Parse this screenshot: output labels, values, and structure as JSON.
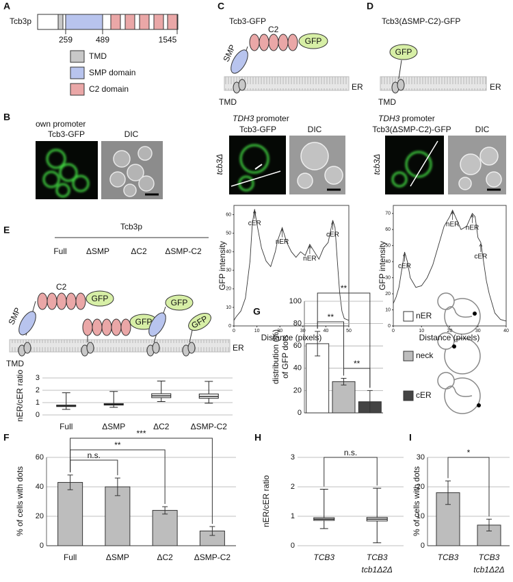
{
  "panels": [
    "A",
    "B",
    "C",
    "D",
    "E",
    "F",
    "G",
    "H",
    "I"
  ],
  "domain_map": {
    "protein": "Tcb3p",
    "positions": [
      259,
      489,
      1545
    ],
    "legend": [
      "TMD",
      "SMP domain",
      "C2 domain"
    ]
  },
  "construct_c": {
    "title": "Tcb3-GFP",
    "labels": [
      "C2",
      "GFP",
      "SMP",
      "TMD",
      "ER"
    ]
  },
  "construct_d": {
    "title": "Tcb3(ΔSMP-C2)-GFP",
    "labels": [
      "GFP",
      "TMD",
      "ER"
    ]
  },
  "microscopy": [
    {
      "header": [
        "own promoter"
      ],
      "columns": [
        "Tcb3-GFP",
        "DIC"
      ]
    },
    {
      "header": [
        "TDH3",
        " promoter"
      ],
      "strain": "tcb3Δ",
      "columns": [
        "Tcb3-GFP",
        "DIC"
      ]
    },
    {
      "header": [
        "TDH3",
        " promoter"
      ],
      "strain": "tcb3Δ",
      "columns": [
        "Tcb3(ΔSMP-C2)-GFP",
        "DIC"
      ]
    }
  ],
  "constructs_e": {
    "title": "Tcb3p",
    "names": [
      "Full",
      "ΔSMP",
      "ΔC2",
      "ΔSMP-C2"
    ],
    "labels": [
      "C2",
      "SMP",
      "TMD",
      "ER"
    ],
    "gfp": "GFP"
  },
  "chart_data": [
    {
      "type": "line",
      "x_label": "Distance (pixels)",
      "y_label": "GFP intensity",
      "color": "#333",
      "x": [
        0,
        1,
        3,
        5,
        7,
        8,
        9,
        10,
        12,
        14,
        16,
        18,
        19,
        21,
        23,
        25,
        27,
        29,
        31,
        33,
        35,
        37,
        39,
        41,
        43,
        44,
        45,
        46,
        47,
        48,
        50
      ],
      "values": [
        3,
        5,
        8,
        15,
        35,
        55,
        63,
        55,
        42,
        35,
        32,
        40,
        46,
        53,
        45,
        40,
        37,
        40,
        38,
        44,
        40,
        36,
        42,
        45,
        57,
        53,
        35,
        18,
        8,
        4,
        3
      ],
      "xlim": [
        0,
        50
      ],
      "xticks": [
        0,
        10,
        20,
        30,
        40,
        50
      ],
      "ylim": [
        0,
        65
      ],
      "yticks": [
        0,
        10,
        20,
        30,
        40,
        50,
        60
      ],
      "annotations": [
        "cER",
        "nER",
        "nER",
        "cER"
      ]
    },
    {
      "type": "line",
      "x_label": "Distance (pixels)",
      "y_label": "GFP intensity",
      "color": "#333",
      "x": [
        0,
        1,
        2,
        3,
        4,
        5,
        6,
        8,
        10,
        12,
        14,
        16,
        18,
        20,
        21,
        22,
        24,
        26,
        28,
        29,
        30,
        31,
        32,
        33,
        34,
        35,
        36,
        38,
        40
      ],
      "values": [
        14,
        18,
        24,
        35,
        46,
        40,
        30,
        24,
        25,
        30,
        38,
        50,
        62,
        68,
        72,
        68,
        60,
        62,
        70,
        68,
        55,
        52,
        40,
        28,
        20,
        14,
        8,
        4,
        3
      ],
      "xlim": [
        0,
        40
      ],
      "xticks": [
        0,
        10,
        20,
        30,
        40
      ],
      "ylim": [
        0,
        75
      ],
      "yticks": [
        0,
        10,
        20,
        30,
        40,
        50,
        60,
        70
      ],
      "annotations": [
        "cER",
        "nER",
        "nER",
        "cER"
      ]
    },
    {
      "type": "box",
      "y_label": "nER/cER ratio",
      "categories": [
        "Full",
        "ΔSMP",
        "ΔC2",
        "ΔSMP-C2"
      ],
      "boxes": [
        {
          "min": 0.45,
          "q1": 0.68,
          "median": 0.73,
          "q3": 0.8,
          "max": 1.8
        },
        {
          "min": 0.62,
          "q1": 0.8,
          "median": 0.85,
          "q3": 0.92,
          "max": 1.9
        },
        {
          "min": 1.08,
          "q1": 1.4,
          "median": 1.55,
          "q3": 1.72,
          "max": 2.75
        },
        {
          "min": 0.95,
          "q1": 1.35,
          "median": 1.5,
          "q3": 1.7,
          "max": 2.72
        }
      ],
      "color": "#ffffff",
      "ylim": [
        0,
        3
      ],
      "yticks": [
        0,
        1,
        2,
        3
      ],
      "grid": true
    },
    {
      "type": "bar",
      "y_label": [
        "distribution (%)",
        "of GFP dots"
      ],
      "categories": [
        "nER",
        "neck",
        "cER"
      ],
      "values": [
        62,
        28,
        10
      ],
      "errors": [
        11,
        3,
        10
      ],
      "colors": [
        "#ffffff",
        "#bdbdbd",
        "#444444"
      ],
      "ylim": [
        0,
        100
      ],
      "yticks": [
        0,
        20,
        40,
        60,
        80,
        100
      ],
      "grid": true,
      "legend": "right",
      "significance": [
        "**",
        "**",
        "**"
      ]
    },
    {
      "type": "bar",
      "y_label": "% of cells with dots",
      "categories": [
        "Full",
        "ΔSMP",
        "ΔC2",
        "ΔSMP-C2"
      ],
      "values": [
        43,
        40,
        24,
        10
      ],
      "errors": [
        5,
        6,
        2.5,
        3
      ],
      "color": "#bdbdbd",
      "ylim": [
        0,
        60
      ],
      "yticks": [
        0,
        20,
        40,
        60
      ],
      "grid": true,
      "significance": [
        "n.s.",
        "**",
        "***"
      ]
    },
    {
      "type": "box",
      "y_label": "nER/cER ratio",
      "categories": [
        [
          "TCB3"
        ],
        [
          "TCB3",
          "tcb1Δ2Δ"
        ]
      ],
      "boxes": [
        {
          "min": 0.58,
          "q1": 0.86,
          "median": 0.9,
          "q3": 0.95,
          "max": 1.92
        },
        {
          "min": 0.1,
          "q1": 0.84,
          "median": 0.9,
          "q3": 0.96,
          "max": 1.95
        }
      ],
      "color": "#ffffff",
      "ylim": [
        0,
        3
      ],
      "yticks": [
        0,
        1,
        2,
        3
      ],
      "grid": true,
      "significance": [
        "n.s."
      ]
    },
    {
      "type": "bar",
      "y_label": "% of cells with dots",
      "categories": [
        [
          "TCB3"
        ],
        [
          "TCB3",
          "tcb1Δ2Δ"
        ]
      ],
      "values": [
        18,
        7
      ],
      "errors": [
        4,
        2
      ],
      "color": "#bdbdbd",
      "ylim": [
        0,
        30
      ],
      "yticks": [
        0,
        10,
        20,
        30
      ],
      "grid": true,
      "significance": [
        "*"
      ]
    }
  ]
}
